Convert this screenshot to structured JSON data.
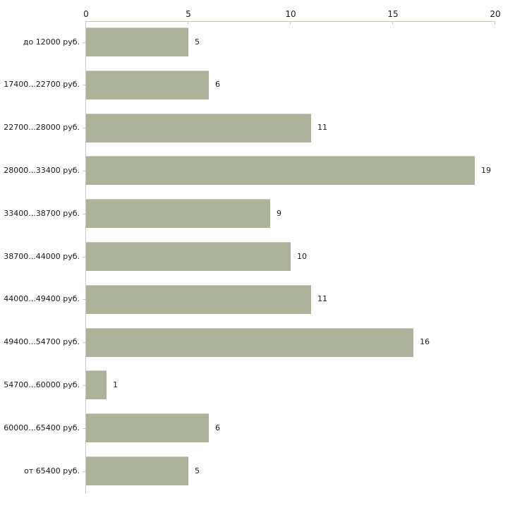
{
  "chart_data": {
    "type": "bar",
    "orientation": "horizontal",
    "title": "",
    "xlabel": "",
    "ylabel": "",
    "axis_position": "top",
    "grid": false,
    "legend": false,
    "value_labels_shown": true,
    "categories": [
      "до 12000 руб.",
      "17400...22700 руб.",
      "22700...28000 руб.",
      "28000...33400 руб.",
      "33400...38700 руб.",
      "38700...44000 руб.",
      "44000...49400 руб.",
      "49400...54700 руб.",
      "54700...60000 руб.",
      "60000...65400 руб.",
      "от 65400 руб."
    ],
    "values": [
      5,
      6,
      11,
      19,
      9,
      10,
      11,
      16,
      1,
      6,
      5
    ],
    "x_ticks": [
      0,
      5,
      10,
      15,
      20
    ],
    "xlim": [
      0,
      20
    ],
    "colors": {
      "bar": "#adb29b",
      "axis": "#c8cbb9",
      "text": "#1a1a1a",
      "background": "#ffffff"
    }
  }
}
